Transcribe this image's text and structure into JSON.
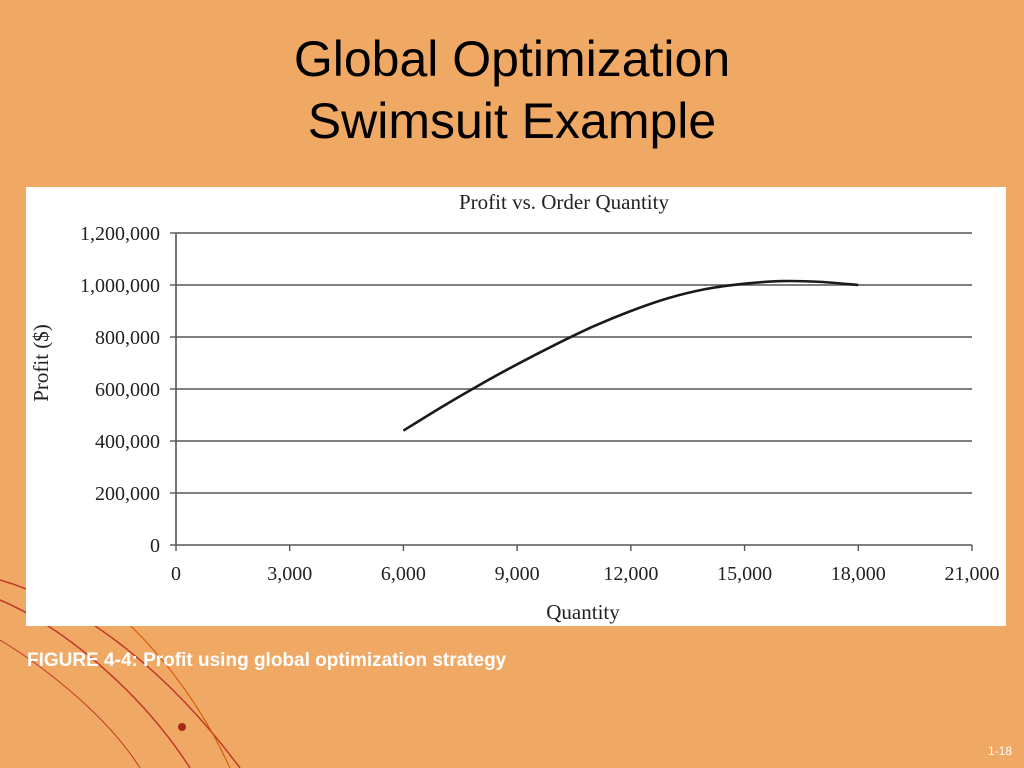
{
  "slide": {
    "title_line1": "Global Optimization",
    "title_line2": "Swimsuit Example",
    "caption": "FIGURE 4-4: Profit using global optimization strategy",
    "slide_number": "1-18"
  },
  "colors": {
    "background": "#f0a964",
    "chart_background": "#ffffff",
    "line": "#1a1a1a",
    "grid": "#555555",
    "caption_text": "#ffffff",
    "decoration": "#c0392b"
  },
  "chart_data": {
    "type": "line",
    "title": "Profit vs. Order Quantity",
    "xlabel": "Quantity",
    "ylabel": "Profit ($)",
    "xlim": [
      0,
      21000
    ],
    "ylim": [
      0,
      1200000
    ],
    "x_ticks": [
      0,
      3000,
      6000,
      9000,
      12000,
      15000,
      18000,
      21000
    ],
    "x_tick_labels": [
      "0",
      "3,000",
      "6,000",
      "9,000",
      "12,000",
      "15,000",
      "18,000",
      "21,000"
    ],
    "y_ticks": [
      0,
      200000,
      400000,
      600000,
      800000,
      1000000,
      1200000
    ],
    "y_tick_labels": [
      "0",
      "200,000",
      "400,000",
      "600,000",
      "800,000",
      "1,000,000",
      "1,200,000"
    ],
    "grid": "horizontal",
    "series": [
      {
        "x": [
          6000,
          7000,
          8000,
          9000,
          10000,
          11000,
          12000,
          13000,
          14000,
          15000,
          16000,
          17000,
          18000
        ],
        "values": [
          440000,
          530000,
          615000,
          695000,
          770000,
          840000,
          900000,
          950000,
          985000,
          1005000,
          1015000,
          1012000,
          1000000
        ]
      }
    ]
  }
}
